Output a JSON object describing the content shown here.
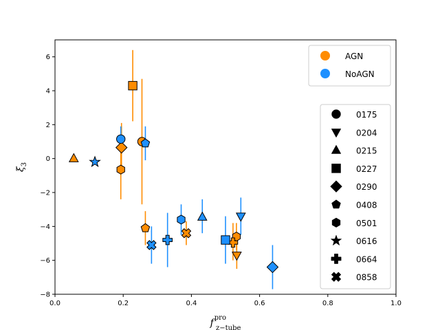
{
  "chart_data": {
    "type": "scatter",
    "title": "",
    "xlabel": {
      "main": "f",
      "sup": "pro",
      "sub": "z−tube"
    },
    "ylabel": {
      "main": "ξ",
      "sub": "3"
    },
    "xlim": [
      0.0,
      1.0
    ],
    "ylim": [
      -8,
      7
    ],
    "xticks": [
      0.0,
      0.2,
      0.4,
      0.6,
      0.8,
      1.0
    ],
    "xtick_labels": [
      "0.0",
      "0.2",
      "0.4",
      "0.6",
      "0.8",
      "1.0"
    ],
    "yticks": [
      -8,
      -6,
      -4,
      -2,
      0,
      2,
      4,
      6
    ],
    "ytick_labels": [
      "−8",
      "−6",
      "−4",
      "−2",
      "0",
      "2",
      "4",
      "6"
    ],
    "grid": false,
    "colors": {
      "AGN": "#ff8c00",
      "NoAGN": "#1e90ff"
    },
    "legend_groups": {
      "placement": "top-right",
      "entries": [
        {
          "label": "AGN",
          "color": "#ff8c00"
        },
        {
          "label": "NoAGN",
          "color": "#1e90ff"
        }
      ]
    },
    "legend_markers": {
      "placement": "right",
      "entries": [
        {
          "label": "0175",
          "marker": "circle"
        },
        {
          "label": "0204",
          "marker": "triangle-down"
        },
        {
          "label": "0215",
          "marker": "triangle-up"
        },
        {
          "label": "0227",
          "marker": "square"
        },
        {
          "label": "0290",
          "marker": "diamond"
        },
        {
          "label": "0408",
          "marker": "pentagon"
        },
        {
          "label": "0501",
          "marker": "hexagon"
        },
        {
          "label": "0616",
          "marker": "star"
        },
        {
          "label": "0664",
          "marker": "plus"
        },
        {
          "label": "0858",
          "marker": "x"
        }
      ]
    },
    "series": [
      {
        "name": "AGN",
        "color": "#ff8c00",
        "points": [
          {
            "id": "0175",
            "marker": "circle",
            "x": 0.255,
            "y": 1.0,
            "ylow": -2.7,
            "yhigh": 4.7
          },
          {
            "id": "0204",
            "marker": "triangle-down",
            "x": 0.533,
            "y": -5.7,
            "ylow": -6.5,
            "yhigh": -4.9
          },
          {
            "id": "0215",
            "marker": "triangle-up",
            "x": 0.055,
            "y": 0.0,
            "ylow": 0.0,
            "yhigh": 0.0
          },
          {
            "id": "0227",
            "marker": "square",
            "x": 0.228,
            "y": 4.3,
            "ylow": 2.2,
            "yhigh": 6.4
          },
          {
            "id": "0290",
            "marker": "diamond",
            "x": 0.195,
            "y": 0.65,
            "ylow": -0.8,
            "yhigh": 2.1
          },
          {
            "id": "0408",
            "marker": "pentagon",
            "x": 0.265,
            "y": -4.1,
            "ylow": -5.1,
            "yhigh": -3.1
          },
          {
            "id": "0501",
            "marker": "hexagon",
            "x": 0.193,
            "y": -0.65,
            "ylow": -2.4,
            "yhigh": 1.1
          },
          {
            "id": "0501",
            "marker": "hexagon",
            "x": 0.532,
            "y": -4.6,
            "ylow": -5.4,
            "yhigh": -3.8
          },
          {
            "id": "0664",
            "marker": "plus",
            "x": 0.522,
            "y": -4.95,
            "ylow": -6.0,
            "yhigh": -3.8
          },
          {
            "id": "0858",
            "marker": "x",
            "x": 0.385,
            "y": -4.4,
            "ylow": -5.1,
            "yhigh": -3.7
          }
        ]
      },
      {
        "name": "NoAGN",
        "color": "#1e90ff",
        "points": [
          {
            "id": "0175",
            "marker": "circle",
            "x": 0.193,
            "y": 1.15,
            "ylow": 0.4,
            "yhigh": 1.9
          },
          {
            "id": "0204",
            "marker": "triangle-down",
            "x": 0.545,
            "y": -3.4,
            "ylow": -4.5,
            "yhigh": -2.3
          },
          {
            "id": "0215",
            "marker": "triangle-up",
            "x": 0.432,
            "y": -3.45,
            "ylow": -4.4,
            "yhigh": -2.4
          },
          {
            "id": "0227",
            "marker": "square",
            "x": 0.5,
            "y": -4.8,
            "ylow": -6.2,
            "yhigh": -3.4
          },
          {
            "id": "0290",
            "marker": "diamond",
            "x": 0.638,
            "y": -6.4,
            "ylow": -7.7,
            "yhigh": -5.1
          },
          {
            "id": "0408",
            "marker": "pentagon",
            "x": 0.265,
            "y": 0.9,
            "ylow": -0.1,
            "yhigh": 1.9
          },
          {
            "id": "0501",
            "marker": "hexagon",
            "x": 0.37,
            "y": -3.6,
            "ylow": -4.5,
            "yhigh": -2.7
          },
          {
            "id": "0616",
            "marker": "star",
            "x": 0.117,
            "y": -0.2,
            "ylow": -0.2,
            "yhigh": -0.2
          },
          {
            "id": "0664",
            "marker": "plus",
            "x": 0.33,
            "y": -4.8,
            "ylow": -6.4,
            "yhigh": -3.2
          },
          {
            "id": "0858",
            "marker": "x",
            "x": 0.283,
            "y": -5.1,
            "ylow": -6.2,
            "yhigh": -4.0
          }
        ]
      }
    ]
  }
}
